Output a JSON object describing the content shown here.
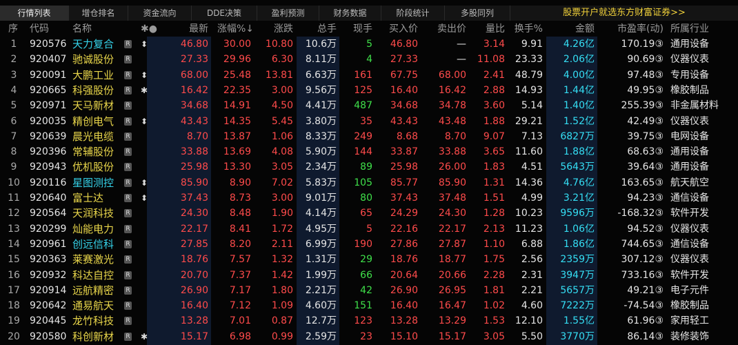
{
  "tabs": [
    "行情列表",
    "增仓排名",
    "资金流向",
    "DDE决策",
    "盈利预测",
    "财务数据",
    "阶段统计",
    "多股同列"
  ],
  "ad": "股票开户就选东方财富证券>>",
  "headers": [
    "序",
    "代码",
    "名称",
    "✱●",
    "最新",
    "涨幅%↓",
    "涨跌",
    "总手",
    "现手",
    "买入价",
    "卖出价",
    "量比",
    "换手%",
    "金额",
    "市盈率(动)",
    "所属行业"
  ],
  "rows": [
    {
      "cells": [
        "1",
        "920576",
        "天力复合",
        "R",
        "46.80",
        "30.00",
        "10.80",
        "10.6万",
        "5",
        "46.80",
        "—",
        "3.14",
        "9.91",
        "4.26亿",
        "170.19③",
        "通用设备"
      ],
      "icon": "⬍",
      "name_color": "#35d3ea",
      "cur_color": "#3fe04a"
    },
    {
      "cells": [
        "2",
        "920407",
        "驰诚股份",
        "R",
        "27.33",
        "29.96",
        "6.30",
        "8.11万",
        "4",
        "27.33",
        "—",
        "11.08",
        "23.33",
        "2.06亿",
        "90.69③",
        "仪器仪表"
      ],
      "name_color": "#e9d64a",
      "cur_color": "#3fe04a"
    },
    {
      "cells": [
        "3",
        "920091",
        "大鹏工业",
        "R",
        "68.00",
        "25.48",
        "13.81",
        "6.63万",
        "161",
        "67.75",
        "68.00",
        "2.41",
        "48.79",
        "4.00亿",
        "97.48③",
        "专用设备"
      ],
      "icon": "⬍",
      "name_color": "#e9d64a",
      "cur_color": "#ff4b4b"
    },
    {
      "cells": [
        "4",
        "920665",
        "科强股份",
        "R",
        "16.42",
        "22.35",
        "3.00",
        "9.56万",
        "125",
        "16.40",
        "16.42",
        "2.88",
        "14.93",
        "1.44亿",
        "49.95③",
        "橡胶制品"
      ],
      "icon": "✱",
      "name_color": "#e9d64a",
      "cur_color": "#ff4b4b"
    },
    {
      "cells": [
        "5",
        "920971",
        "天马新材",
        "R",
        "34.68",
        "14.91",
        "4.50",
        "4.41万",
        "487",
        "34.68",
        "34.78",
        "3.60",
        "5.14",
        "1.40亿",
        "255.39③",
        "非金属材料"
      ],
      "name_color": "#e9d64a",
      "cur_color": "#3fe04a"
    },
    {
      "cells": [
        "6",
        "920035",
        "精创电气",
        "R",
        "43.43",
        "14.35",
        "5.45",
        "3.80万",
        "35",
        "43.43",
        "43.48",
        "1.88",
        "29.21",
        "1.52亿",
        "42.49③",
        "仪器仪表"
      ],
      "icon": "⬍",
      "name_color": "#e9d64a",
      "cur_color": "#ff4b4b"
    },
    {
      "cells": [
        "7",
        "920639",
        "晨光电缆",
        "R",
        "8.70",
        "13.87",
        "1.06",
        "8.33万",
        "249",
        "8.68",
        "8.70",
        "9.07",
        "7.13",
        "6827万",
        "39.75③",
        "电网设备"
      ],
      "name_color": "#e9d64a",
      "cur_color": "#ff4b4b"
    },
    {
      "cells": [
        "8",
        "920396",
        "常辅股份",
        "R",
        "33.88",
        "13.69",
        "4.08",
        "5.90万",
        "144",
        "33.87",
        "33.88",
        "3.65",
        "11.60",
        "1.88亿",
        "68.63③",
        "通用设备"
      ],
      "name_color": "#e9d64a",
      "cur_color": "#ff4b4b"
    },
    {
      "cells": [
        "9",
        "920943",
        "优机股份",
        "R",
        "25.98",
        "13.30",
        "3.05",
        "2.34万",
        "89",
        "25.98",
        "26.00",
        "1.83",
        "4.51",
        "5643万",
        "39.64③",
        "通用设备"
      ],
      "name_color": "#e9d64a",
      "cur_color": "#3fe04a"
    },
    {
      "cells": [
        "10",
        "920116",
        "星图测控",
        "R",
        "85.90",
        "8.90",
        "7.02",
        "5.83万",
        "105",
        "85.77",
        "85.90",
        "1.31",
        "14.36",
        "4.76亿",
        "163.65③",
        "航天航空"
      ],
      "icon": "⬍",
      "name_color": "#35d3ea",
      "cur_color": "#3fe04a"
    },
    {
      "cells": [
        "11",
        "920640",
        "富士达",
        "R",
        "37.43",
        "8.73",
        "3.00",
        "9.01万",
        "80",
        "37.43",
        "37.48",
        "1.51",
        "4.99",
        "3.21亿",
        "94.23③",
        "通信设备"
      ],
      "icon": "⬍",
      "name_color": "#e9d64a",
      "cur_color": "#3fe04a"
    },
    {
      "cells": [
        "12",
        "920564",
        "天润科技",
        "R",
        "24.30",
        "8.48",
        "1.90",
        "4.14万",
        "65",
        "24.29",
        "24.30",
        "1.28",
        "10.23",
        "9596万",
        "-168.32③",
        "软件开发"
      ],
      "name_color": "#e9d64a",
      "cur_color": "#ff4b4b"
    },
    {
      "cells": [
        "13",
        "920299",
        "灿能电力",
        "R",
        "22.17",
        "8.41",
        "1.72",
        "4.95万",
        "5",
        "22.16",
        "22.17",
        "2.13",
        "11.23",
        "1.06亿",
        "94.52③",
        "仪器仪表"
      ],
      "name_color": "#e9d64a",
      "cur_color": "#ff4b4b"
    },
    {
      "cells": [
        "14",
        "920961",
        "创远信科",
        "R",
        "27.85",
        "8.20",
        "2.11",
        "6.99万",
        "190",
        "27.86",
        "27.87",
        "1.10",
        "6.88",
        "1.86亿",
        "744.65③",
        "通信设备"
      ],
      "name_color": "#35d3ea",
      "cur_color": "#ff4b4b"
    },
    {
      "cells": [
        "15",
        "920363",
        "莱赛激光",
        "R",
        "18.76",
        "7.57",
        "1.32",
        "1.31万",
        "29",
        "18.76",
        "18.77",
        "1.75",
        "2.56",
        "2359万",
        "307.12③",
        "仪器仪表"
      ],
      "name_color": "#e9d64a",
      "cur_color": "#3fe04a"
    },
    {
      "cells": [
        "16",
        "920932",
        "科达自控",
        "R",
        "20.70",
        "7.37",
        "1.42",
        "1.99万",
        "66",
        "20.64",
        "20.66",
        "2.28",
        "2.31",
        "3947万",
        "733.16③",
        "软件开发"
      ],
      "name_color": "#e9d64a",
      "cur_color": "#3fe04a"
    },
    {
      "cells": [
        "17",
        "920914",
        "远航精密",
        "R",
        "26.90",
        "7.17",
        "1.80",
        "2.21万",
        "42",
        "26.90",
        "26.95",
        "1.81",
        "2.21",
        "5657万",
        "49.21③",
        "电子元件"
      ],
      "name_color": "#e9d64a",
      "cur_color": "#3fe04a"
    },
    {
      "cells": [
        "18",
        "920642",
        "通易航天",
        "R",
        "16.40",
        "7.12",
        "1.09",
        "4.60万",
        "151",
        "16.40",
        "16.47",
        "1.02",
        "4.60",
        "7222万",
        "-74.54③",
        "橡胶制品"
      ],
      "name_color": "#e9d64a",
      "cur_color": "#3fe04a"
    },
    {
      "cells": [
        "19",
        "920445",
        "龙竹科技",
        "R",
        "13.28",
        "7.01",
        "0.87",
        "12.7万",
        "123",
        "13.28",
        "13.29",
        "1.53",
        "12.10",
        "1.55亿",
        "61.96③",
        "家用轻工"
      ],
      "name_color": "#e9d64a",
      "cur_color": "#ff4b4b"
    },
    {
      "cells": [
        "20",
        "920580",
        "科创新材",
        "R",
        "15.17",
        "6.98",
        "0.99",
        "2.59万",
        "23",
        "15.10",
        "15.17",
        "3.05",
        "5.50",
        "3770万",
        "86.14③",
        "装修装饰"
      ],
      "icon": "✱",
      "name_color": "#e9d64a",
      "cur_color": "#ff4b4b"
    }
  ]
}
